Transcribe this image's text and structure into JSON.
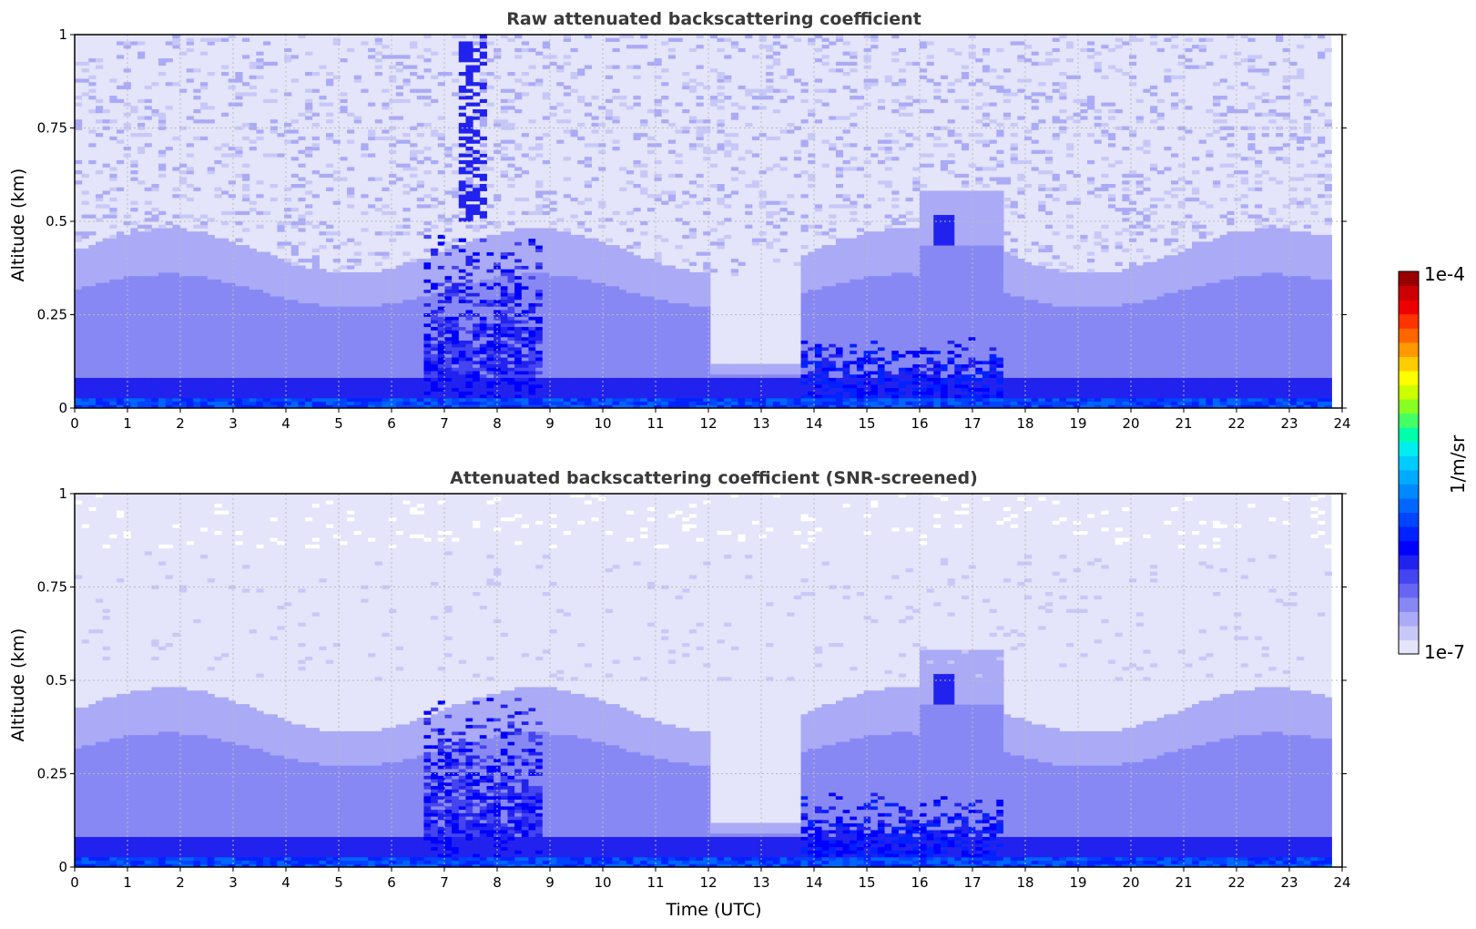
{
  "chart_data": [
    {
      "type": "heatmap",
      "title": "Raw attenuated backscattering coefficient",
      "xlabel": "",
      "ylabel": "Altitude (km)",
      "xlim": [
        0,
        24
      ],
      "ylim": [
        0,
        1
      ],
      "x_ticks": [
        "0",
        "1",
        "2",
        "3",
        "4",
        "5",
        "6",
        "7",
        "8",
        "9",
        "10",
        "11",
        "12",
        "13",
        "14",
        "15",
        "16",
        "17",
        "18",
        "19",
        "20",
        "21",
        "22",
        "23",
        "24"
      ],
      "y_ticks": [
        "0",
        "0.25",
        "0.5",
        "0.75",
        "1"
      ],
      "grid": true,
      "data_end_time": 23.8,
      "features": [
        {
          "name": "boundary layer",
          "t_start": 0,
          "t_end": 23.8,
          "alt_top": 0.45
        },
        {
          "name": "dense near-surface layer",
          "t_start": 0,
          "t_end": 23.8,
          "alt_top": 0.08
        },
        {
          "name": "convective plumes",
          "t_start": 6.5,
          "t_end": 9.0,
          "alt_top": 0.4
        },
        {
          "name": "plume",
          "t_start": 16.3,
          "t_end": 16.6,
          "alt_top": 0.5
        }
      ]
    },
    {
      "type": "heatmap",
      "title": "Attenuated backscattering coefficient (SNR-screened)",
      "xlabel": "Time (UTC)",
      "ylabel": "Altitude (km)",
      "xlim": [
        0,
        24
      ],
      "ylim": [
        0,
        1
      ],
      "x_ticks": [
        "0",
        "1",
        "2",
        "3",
        "4",
        "5",
        "6",
        "7",
        "8",
        "9",
        "10",
        "11",
        "12",
        "13",
        "14",
        "15",
        "16",
        "17",
        "18",
        "19",
        "20",
        "21",
        "22",
        "23",
        "24"
      ],
      "y_ticks": [
        "0",
        "0.25",
        "0.5",
        "0.75",
        "1"
      ],
      "grid": true,
      "data_end_time": 23.8
    }
  ],
  "colorbar": {
    "label": "1/m/sr",
    "min_label": "1e-7",
    "max_label": "1e-4",
    "scale": "log",
    "colors": [
      "#e4e4fa",
      "#c8c8f8",
      "#aaaaf6",
      "#8888f4",
      "#6666f2",
      "#4444f0",
      "#2222ee",
      "#0000ff",
      "#0022ff",
      "#0044ff",
      "#0066ff",
      "#0088ff",
      "#00aaff",
      "#00ccff",
      "#00eeee",
      "#00ffaa",
      "#44ff66",
      "#88ff22",
      "#ccff00",
      "#ffff00",
      "#ffcc00",
      "#ff9900",
      "#ff6600",
      "#ff3300",
      "#ee0000",
      "#cc0000",
      "#990000"
    ]
  }
}
